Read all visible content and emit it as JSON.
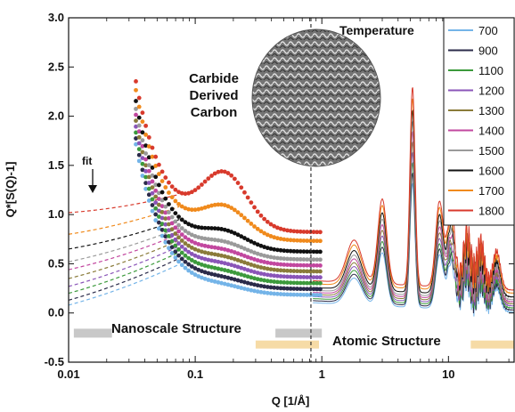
{
  "chart_data": {
    "type": "line",
    "xscale": "log",
    "xlabel": "Q [1/Å]",
    "ylabel": "Q*[S(Q)-1]",
    "xlim": [
      0.01,
      33
    ],
    "ylim": [
      -0.5,
      3.0
    ],
    "xticks": [
      {
        "value": 0.01,
        "label": "0.01"
      },
      {
        "value": 0.1,
        "label": "0.1"
      },
      {
        "value": 1,
        "label": "1"
      },
      {
        "value": 10,
        "label": "10"
      }
    ],
    "yticks": [
      {
        "value": -0.5,
        "label": "-0.5"
      },
      {
        "value": 0.0,
        "label": "0.0"
      },
      {
        "value": 0.5,
        "label": "0.5"
      },
      {
        "value": 1.0,
        "label": "1.0"
      },
      {
        "value": 1.5,
        "label": "1.5"
      },
      {
        "value": 2.0,
        "label": "2.0"
      },
      {
        "value": 2.5,
        "label": "2.5"
      },
      {
        "value": 3.0,
        "label": "3.0"
      }
    ],
    "legend_title": "Temperature",
    "legend_position": "top-right",
    "divider_x": 0.82,
    "series": [
      {
        "name": "700",
        "color": "#74b4e8",
        "offset": 0.0,
        "hump": 0.05,
        "fit_at_001": 0.08
      },
      {
        "name": "900",
        "color": "#2b2b4a",
        "offset": 0.06,
        "hump": 0.06,
        "fit_at_001": 0.13
      },
      {
        "name": "1100",
        "color": "#3c9a3c",
        "offset": 0.12,
        "hump": 0.07,
        "fit_at_001": 0.2
      },
      {
        "name": "1200",
        "color": "#8a55b8",
        "offset": 0.18,
        "hump": 0.08,
        "fit_at_001": 0.27
      },
      {
        "name": "1300",
        "color": "#8a7b3a",
        "offset": 0.24,
        "hump": 0.09,
        "fit_at_001": 0.35
      },
      {
        "name": "1400",
        "color": "#c2479f",
        "offset": 0.3,
        "hump": 0.1,
        "fit_at_001": 0.44
      },
      {
        "name": "1500",
        "color": "#9a9a9a",
        "offset": 0.36,
        "hump": 0.12,
        "fit_at_001": 0.52
      },
      {
        "name": "1600",
        "color": "#111111",
        "offset": 0.44,
        "hump": 0.16,
        "fit_at_001": 0.65
      },
      {
        "name": "1700",
        "color": "#f08a1c",
        "offset": 0.55,
        "hump": 0.3,
        "fit_at_001": 0.8
      },
      {
        "name": "1800",
        "color": "#d83a2c",
        "offset": 0.64,
        "hump": 0.55,
        "fit_at_001": 1.02
      }
    ],
    "annotations": {
      "fit": "fit",
      "inset_title_line1": "Carbide",
      "inset_title_line2": "Derived",
      "inset_title_line3": "Carbon",
      "nanoscale": "Nanoscale Structure",
      "atomic": "Atomic Structure"
    }
  }
}
